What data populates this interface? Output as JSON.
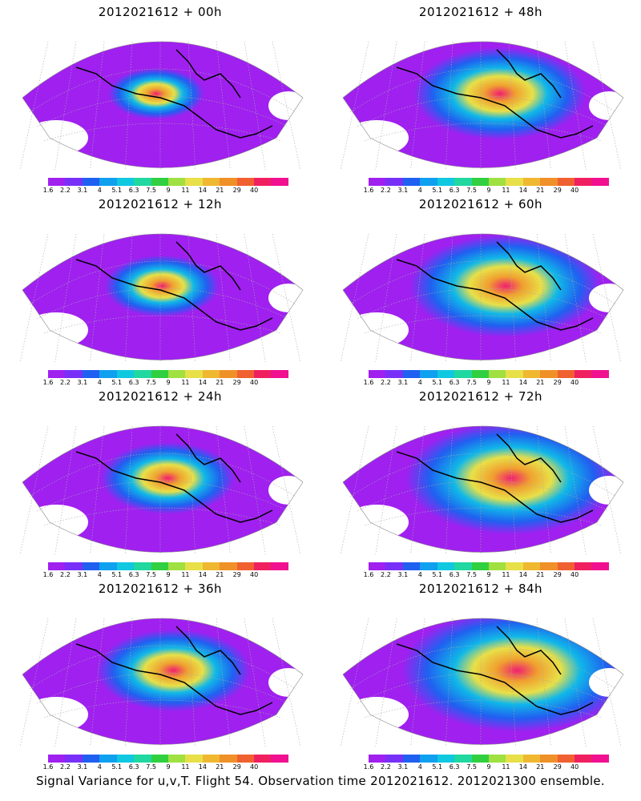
{
  "panels": [
    {
      "title": "2012021612 + 00h",
      "lead_hours": 0
    },
    {
      "title": "2012021612 + 48h",
      "lead_hours": 48
    },
    {
      "title": "2012021612 + 12h",
      "lead_hours": 12
    },
    {
      "title": "2012021612 + 60h",
      "lead_hours": 60
    },
    {
      "title": "2012021612 + 24h",
      "lead_hours": 24
    },
    {
      "title": "2012021612 + 72h",
      "lead_hours": 72
    },
    {
      "title": "2012021612 + 36h",
      "lead_hours": 36
    },
    {
      "title": "2012021612 + 84h",
      "lead_hours": 84
    }
  ],
  "legend": {
    "labels": [
      "1.6",
      "2.2",
      "3.1",
      "4",
      "5.1",
      "6.3",
      "7.5",
      "9",
      "11",
      "14",
      "21",
      "29",
      "40"
    ],
    "colors": [
      "#a020f0",
      "#7830f8",
      "#2060f0",
      "#10a0f0",
      "#10c8e0",
      "#20d8a0",
      "#30d040",
      "#a0e040",
      "#e8e048",
      "#f0b830",
      "#f09028",
      "#f06030",
      "#f02060",
      "#f01090"
    ]
  },
  "colors": {
    "land_outline": "#000000",
    "grid": "#aaaaaa",
    "low": "#a020f0",
    "mid": "#10b8e8",
    "high": "#f0a030",
    "peak": "#f02070"
  },
  "caption": "Signal Variance for u,v,T. Flight 54. Observation time 2012021612. 2012021300 ensemble."
}
